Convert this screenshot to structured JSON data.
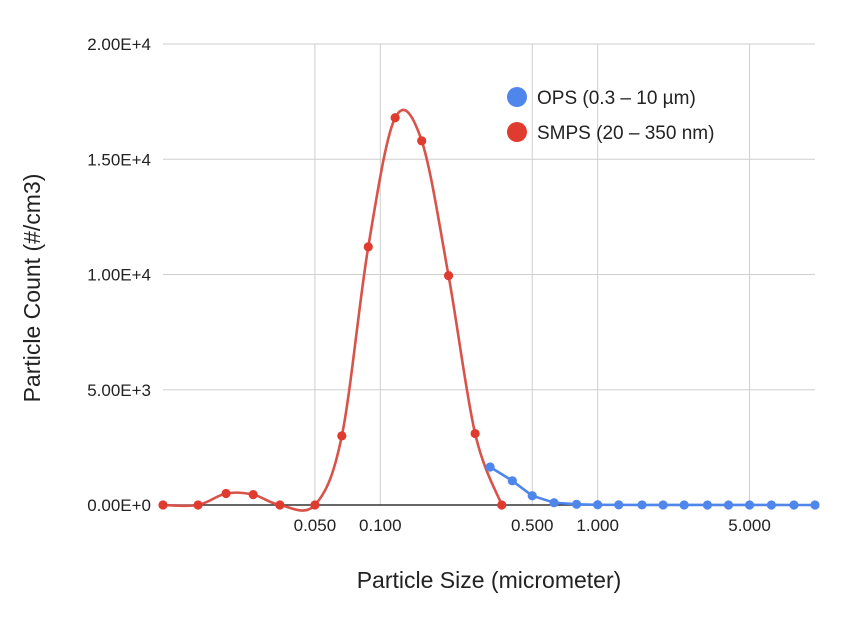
{
  "chart_data": {
    "type": "scatter",
    "x_scale": "log",
    "xlabel": "Particle Size (micrometer)",
    "ylabel": "Particle Count (#/cm3)",
    "ylim": [
      0,
      20000
    ],
    "xlim": [
      0.01,
      10
    ],
    "grid": true,
    "legend_position": "top-right",
    "y_ticks": [
      {
        "value": 0,
        "label": "0.00E+0"
      },
      {
        "value": 5000,
        "label": "5.00E+3"
      },
      {
        "value": 10000,
        "label": "1.00E+4"
      },
      {
        "value": 15000,
        "label": "1.50E+4"
      },
      {
        "value": 20000,
        "label": "2.00E+4"
      }
    ],
    "x_ticks": [
      {
        "value": 0.05,
        "label": "0.050"
      },
      {
        "value": 0.1,
        "label": "0.100"
      },
      {
        "value": 0.5,
        "label": "0.500"
      },
      {
        "value": 1,
        "label": "1.000"
      },
      {
        "value": 5,
        "label": "5.000"
      }
    ],
    "x_grid": [
      0.05,
      0.1,
      0.5,
      1,
      5
    ],
    "series": [
      {
        "name": "SMPS (20 – 350 nm)",
        "color": "#e03b2f",
        "line_color": "#d9534a",
        "smooth": true,
        "points": [
          [
            0.01,
            0
          ],
          [
            0.0145,
            0
          ],
          [
            0.0195,
            500
          ],
          [
            0.026,
            450
          ],
          [
            0.0345,
            0
          ],
          [
            0.05,
            0
          ],
          [
            0.0665,
            3000
          ],
          [
            0.088,
            11200
          ],
          [
            0.117,
            16800
          ],
          [
            0.155,
            15800
          ],
          [
            0.206,
            9950
          ],
          [
            0.273,
            3100
          ],
          [
            0.362,
            0
          ]
        ]
      },
      {
        "name": "OPS (0.3 – 10 µm)",
        "color": "#4f86ec",
        "line_color": "#4f86ec",
        "smooth": false,
        "points": [
          [
            0.32,
            1650
          ],
          [
            0.405,
            1050
          ],
          [
            0.5,
            400
          ],
          [
            0.63,
            100
          ],
          [
            0.8,
            30
          ],
          [
            1.0,
            10
          ],
          [
            1.25,
            5
          ],
          [
            1.6,
            3
          ],
          [
            2.0,
            2
          ],
          [
            2.5,
            2
          ],
          [
            3.2,
            1
          ],
          [
            4.0,
            1
          ],
          [
            5.0,
            1
          ],
          [
            6.3,
            1
          ],
          [
            8.0,
            0
          ],
          [
            10.0,
            0
          ]
        ]
      }
    ]
  }
}
